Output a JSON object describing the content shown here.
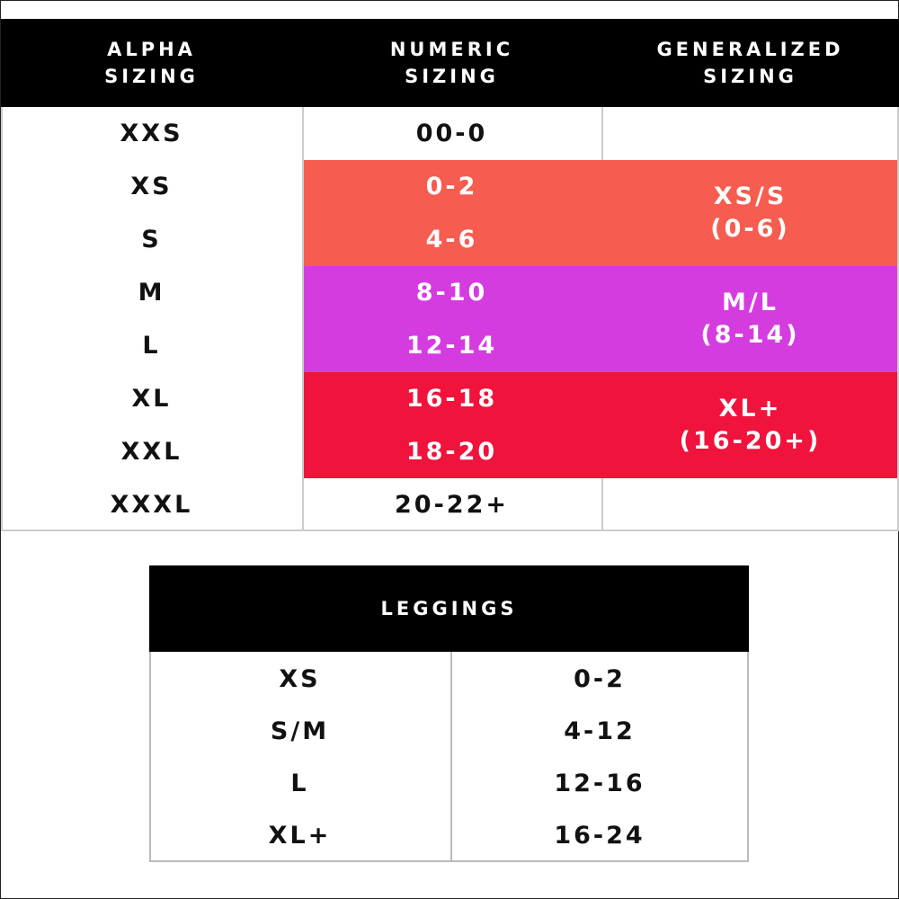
{
  "sizing": {
    "headers": [
      "ALPHA\nSIZING",
      "NUMERIC\nSIZING",
      "GENERALIZED\nSIZING"
    ],
    "rows": [
      {
        "alpha": "XXS",
        "numeric": "00-0"
      },
      {
        "alpha": "XS",
        "numeric": "0-2"
      },
      {
        "alpha": "S",
        "numeric": "4-6"
      },
      {
        "alpha": "M",
        "numeric": "8-10"
      },
      {
        "alpha": "L",
        "numeric": "12-14"
      },
      {
        "alpha": "XL",
        "numeric": "16-18"
      },
      {
        "alpha": "XXL",
        "numeric": "18-20"
      },
      {
        "alpha": "XXXL",
        "numeric": "20-22+"
      }
    ],
    "groups": [
      "XS/S\n(0-6)",
      "M/L\n(8-14)",
      "XL+\n(16-20+)"
    ]
  },
  "leggings": {
    "title": "LEGGINGS",
    "rows": [
      [
        "XS",
        "0-2"
      ],
      [
        "S/M",
        "4-12"
      ],
      [
        "L",
        "12-16"
      ],
      [
        "XL+",
        "16-24"
      ]
    ]
  }
}
